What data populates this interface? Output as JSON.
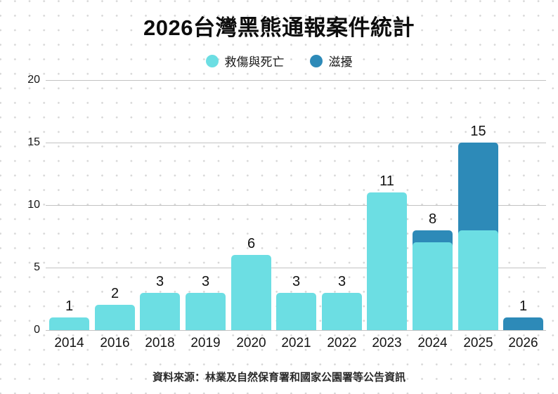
{
  "title": "2026台灣黑熊通報案件統計",
  "legend": {
    "items": [
      {
        "label": "救傷與死亡",
        "color": "#6CDEE3"
      },
      {
        "label": "滋擾",
        "color": "#2D8AB8"
      }
    ]
  },
  "source": "資料來源：林業及自然保育署和國家公園署等公告資訊",
  "chart_data": {
    "type": "bar",
    "stacked": true,
    "title": "2026台灣黑熊通報案件統計",
    "categories": [
      "2014",
      "2016",
      "2018",
      "2019",
      "2020",
      "2021",
      "2022",
      "2023",
      "2024",
      "2025",
      "2026"
    ],
    "series": [
      {
        "name": "救傷與死亡",
        "color": "#6CDEE3",
        "values": [
          1,
          2,
          3,
          3,
          6,
          3,
          3,
          11,
          7,
          8,
          0
        ]
      },
      {
        "name": "滋擾",
        "color": "#2D8AB8",
        "values": [
          0,
          0,
          0,
          0,
          0,
          0,
          0,
          0,
          1,
          7,
          1
        ]
      }
    ],
    "totals": [
      1,
      2,
      3,
      3,
      6,
      3,
      3,
      11,
      8,
      15,
      1
    ],
    "yticks": [
      0,
      5,
      10,
      15,
      20
    ],
    "ylim": [
      0,
      20
    ],
    "xlabel": "",
    "ylabel": "",
    "grid": true,
    "legend_position": "top",
    "gridline_color": "#c2c2c2"
  }
}
